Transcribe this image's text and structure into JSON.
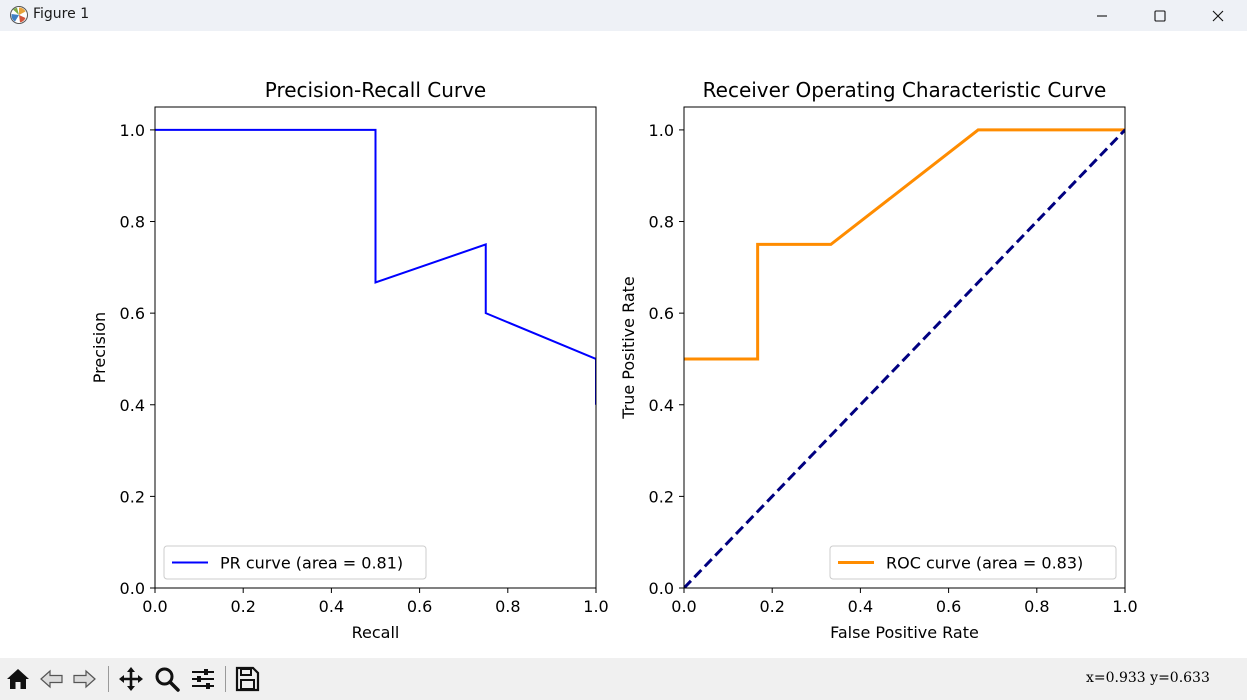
{
  "window": {
    "title": "Figure 1"
  },
  "toolbar": {
    "buttons": [
      "home-icon",
      "back-icon",
      "forward-icon",
      "pan-icon",
      "zoom-icon",
      "configure-subplots-icon",
      "save-icon"
    ],
    "coords": "x=0.933  y=0.633"
  },
  "chart_data": [
    {
      "type": "line",
      "title": "Precision-Recall Curve",
      "xlabel": "Recall",
      "ylabel": "Precision",
      "xlim": [
        0.0,
        1.0
      ],
      "ylim": [
        0.0,
        1.05
      ],
      "xticks": [
        "0.0",
        "0.2",
        "0.4",
        "0.6",
        "0.8",
        "1.0"
      ],
      "yticks": [
        "0.0",
        "0.2",
        "0.4",
        "0.6",
        "0.8",
        "1.0"
      ],
      "grid": false,
      "legend": "lower left",
      "series": [
        {
          "name": "PR curve (area = 0.81)",
          "color": "#0000ff",
          "x": [
            0.0,
            0.5,
            0.5,
            0.75,
            0.75,
            1.0,
            1.0
          ],
          "y": [
            1.0,
            1.0,
            0.667,
            0.75,
            0.6,
            0.5,
            0.4
          ]
        }
      ]
    },
    {
      "type": "line",
      "title": "Receiver Operating Characteristic Curve",
      "xlabel": "False Positive Rate",
      "ylabel": "True Positive Rate",
      "xlim": [
        0.0,
        1.0
      ],
      "ylim": [
        0.0,
        1.05
      ],
      "xticks": [
        "0.0",
        "0.2",
        "0.4",
        "0.6",
        "0.8",
        "1.0"
      ],
      "yticks": [
        "0.0",
        "0.2",
        "0.4",
        "0.6",
        "0.8",
        "1.0"
      ],
      "grid": false,
      "legend": "lower right",
      "series": [
        {
          "name": "ROC curve (area = 0.83)",
          "color": "#ff8c00",
          "x": [
            0.0,
            0.167,
            0.167,
            0.333,
            0.667,
            1.0
          ],
          "y": [
            0.5,
            0.5,
            0.75,
            0.75,
            1.0,
            1.0
          ]
        },
        {
          "name": "",
          "color": "#000080",
          "dashed": true,
          "x": [
            0.0,
            1.0
          ],
          "y": [
            0.0,
            1.0
          ]
        }
      ]
    }
  ]
}
